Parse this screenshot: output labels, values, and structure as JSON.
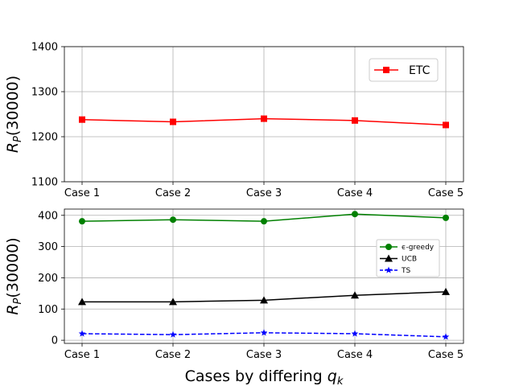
{
  "chart_data": [
    {
      "type": "line",
      "categories": [
        "Case 1",
        "Case 2",
        "Case 3",
        "Case 4",
        "Case 5"
      ],
      "ylabel_main": "R",
      "ylabel_sub": "P",
      "ylabel_rest": "(30000)",
      "ylim": [
        1100,
        1400
      ],
      "yticks": [
        1100,
        1200,
        1300,
        1400
      ],
      "grid": true,
      "legend": "top-right",
      "series": [
        {
          "name": "ETC",
          "color": "#ff0000",
          "marker": "square",
          "dash": "solid",
          "values": [
            1238,
            1233,
            1240,
            1236,
            1226
          ]
        }
      ]
    },
    {
      "type": "line",
      "categories": [
        "Case 1",
        "Case 2",
        "Case 3",
        "Case 4",
        "Case 5"
      ],
      "ylabel_main": "R",
      "ylabel_sub": "P",
      "ylabel_rest": "(30000)",
      "xlabel_main": "Cases by differing q",
      "xlabel_sub": "k",
      "ylim": [
        -10,
        420
      ],
      "yticks": [
        0,
        100,
        200,
        300,
        400
      ],
      "grid": true,
      "legend": "center-right",
      "series": [
        {
          "name": "ϵ-greedy",
          "color": "#008000",
          "marker": "circle",
          "dash": "solid",
          "values": [
            381,
            386,
            381,
            404,
            392
          ]
        },
        {
          "name": "UCB",
          "color": "#000000",
          "marker": "triangle",
          "dash": "solid",
          "values": [
            123,
            123,
            128,
            144,
            155
          ]
        },
        {
          "name": "TS",
          "color": "#0000ff",
          "marker": "star",
          "dash": "dashed",
          "values": [
            21,
            18,
            24,
            21,
            11
          ]
        }
      ]
    }
  ]
}
